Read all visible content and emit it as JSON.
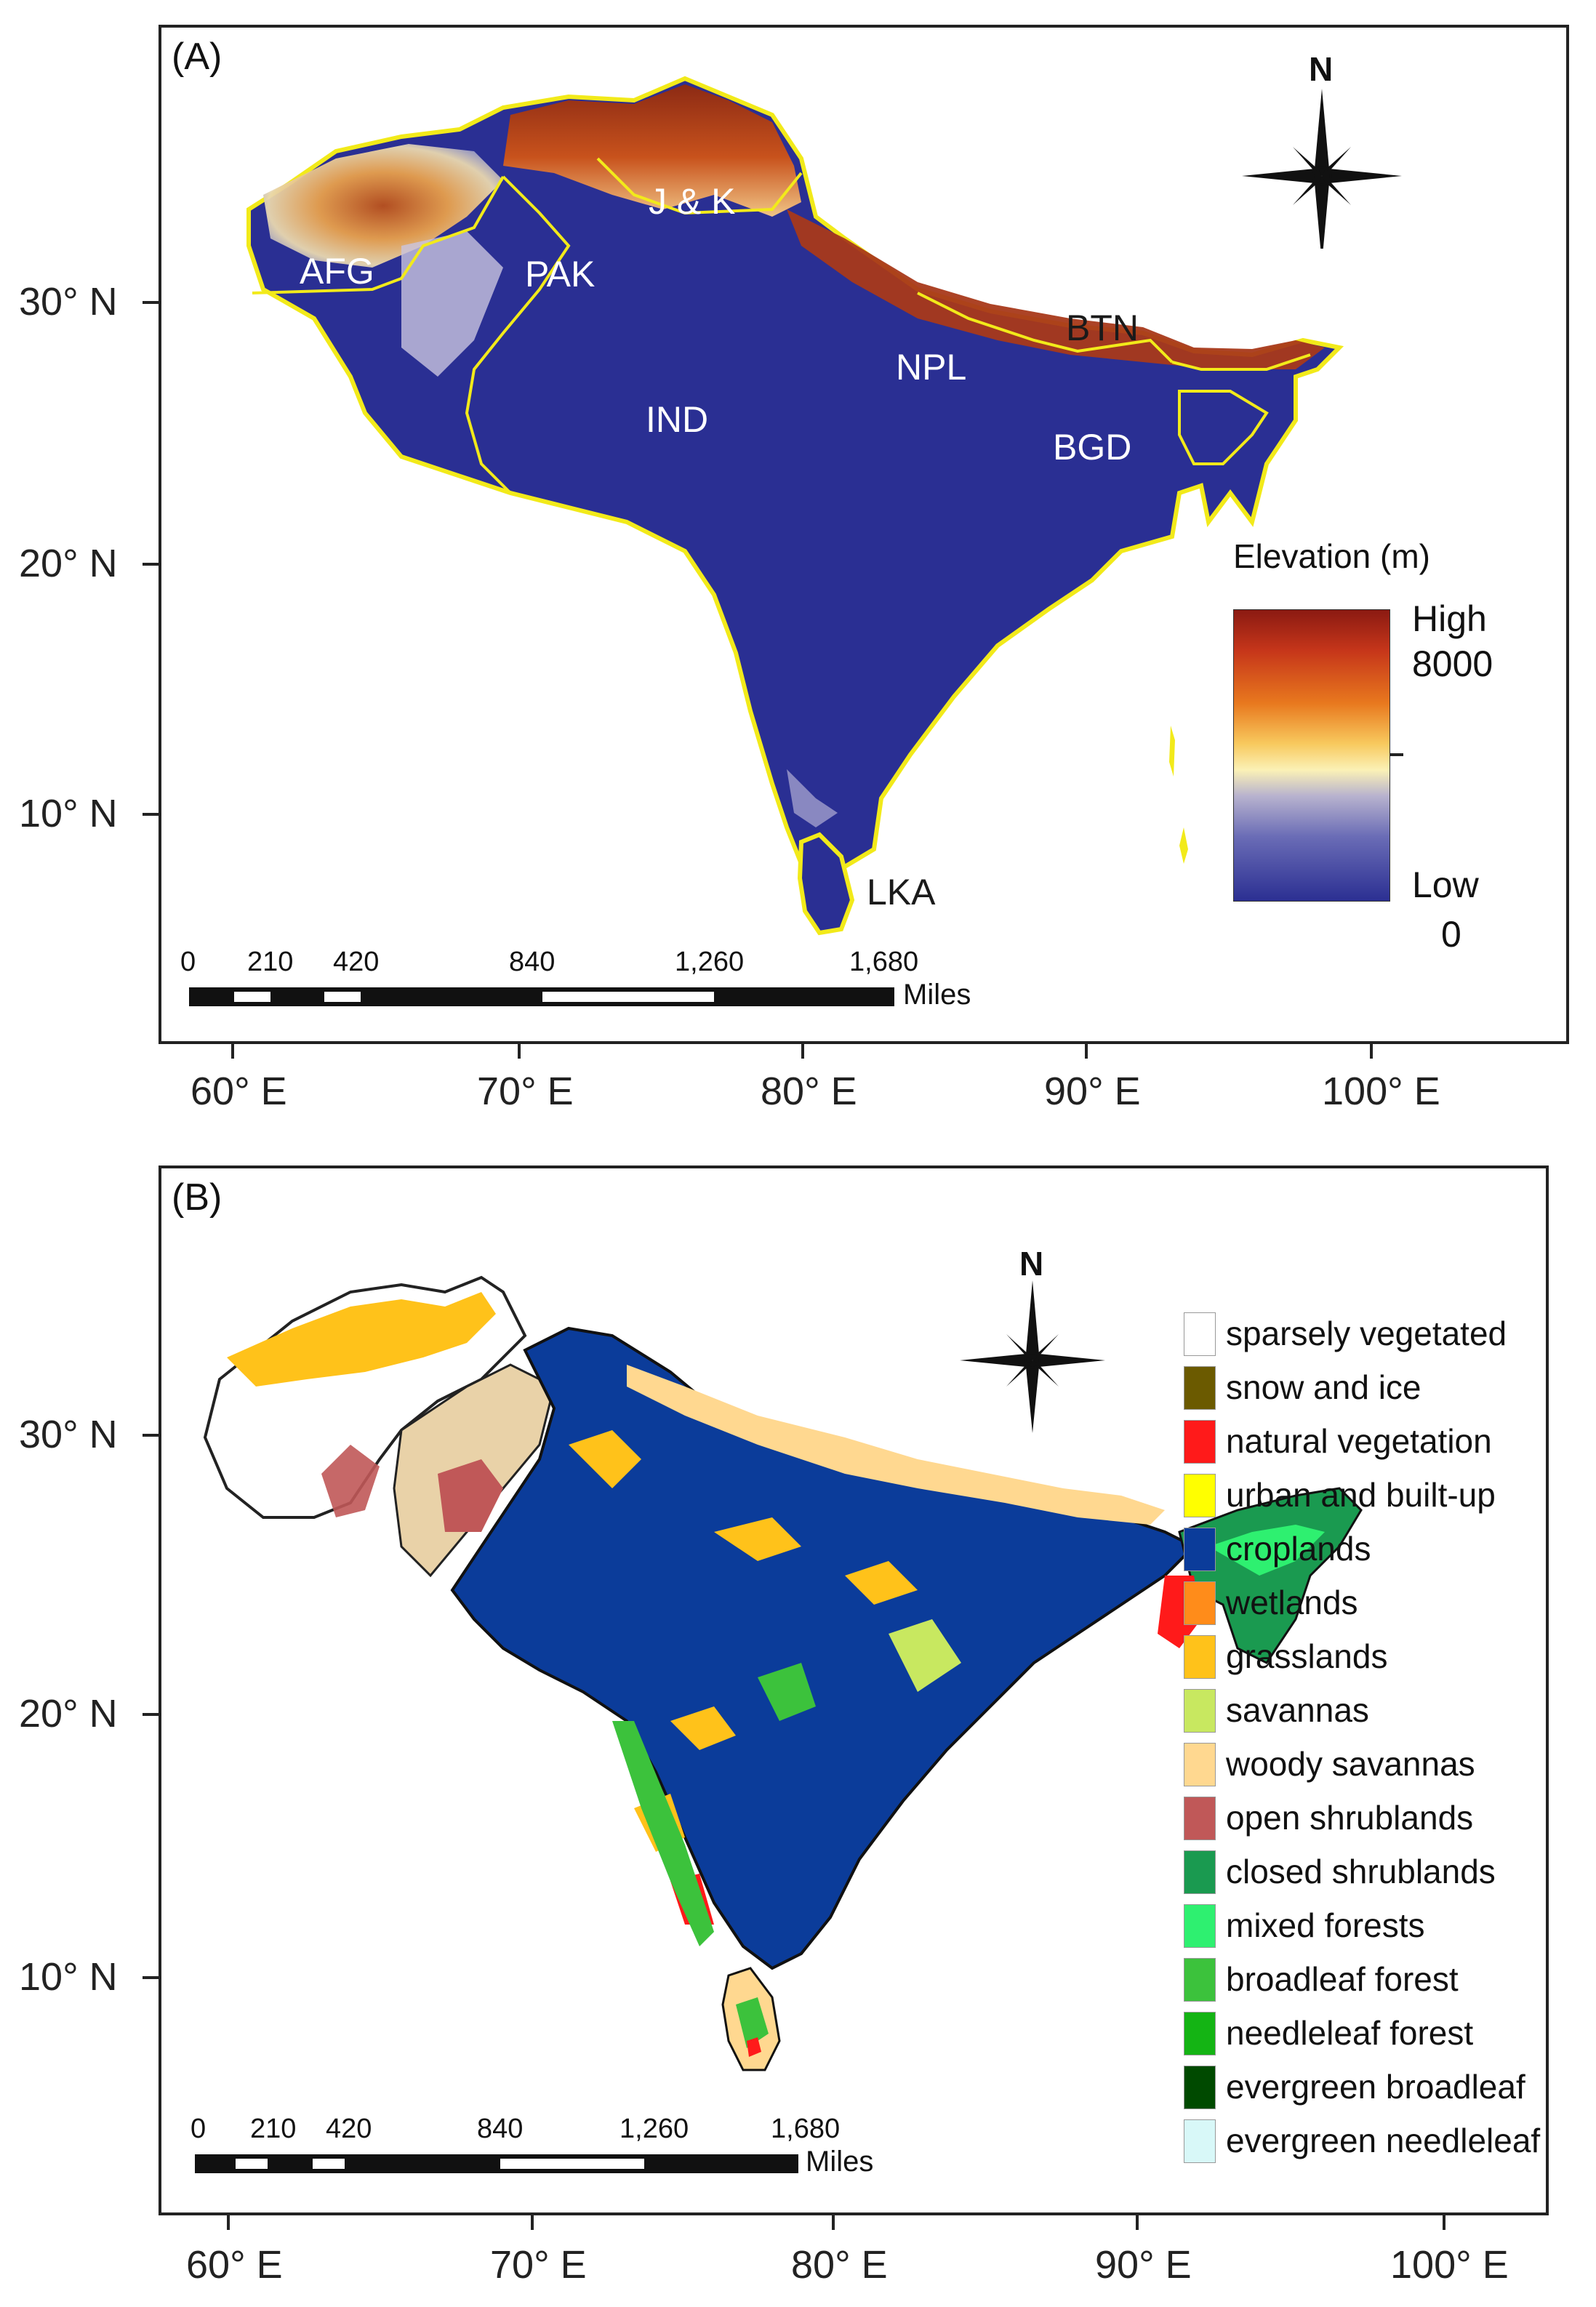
{
  "panel_a": {
    "letter": "(A)",
    "north": "N",
    "lat_labels": [
      "30° N",
      "20° N",
      "10° N"
    ],
    "lon_labels": [
      "60° E",
      "70° E",
      "80° E",
      "90° E",
      "100° E"
    ],
    "countries": {
      "afg": "AFG",
      "pak": "PAK",
      "jk": "J & K",
      "ind": "IND",
      "npl": "NPL",
      "btn": "BTN",
      "bgd": "BGD",
      "lka": "LKA"
    },
    "scale": {
      "ticks": [
        "0",
        "210",
        "420",
        "840",
        "1,260",
        "1,680"
      ],
      "unit": "Miles"
    },
    "legend": {
      "title": "Elevation (m)",
      "high": "High",
      "high_value": "8000",
      "low": "Low",
      "low_value": "0"
    }
  },
  "panel_b": {
    "letter": "(B)",
    "north": "N",
    "lat_labels": [
      "30° N",
      "20° N",
      "10° N"
    ],
    "lon_labels": [
      "60° E",
      "70° E",
      "80° E",
      "90° E",
      "100° E"
    ],
    "scale": {
      "ticks": [
        "0",
        "210",
        "420",
        "840",
        "1,260",
        "1,680"
      ],
      "unit": "Miles"
    },
    "legend": [
      {
        "label": "sparsely vegetated",
        "color": "#ffffff"
      },
      {
        "label": "snow and ice",
        "color": "#6b5a00"
      },
      {
        "label": "natural vegetation",
        "color": "#ff1a1a"
      },
      {
        "label": "urban and built-up",
        "color": "#ffff00"
      },
      {
        "label": "croplands",
        "color": "#0b3c9a"
      },
      {
        "label": "wetlands",
        "color": "#ff8c1a"
      },
      {
        "label": "grasslands",
        "color": "#ffc21a"
      },
      {
        "label": "savannas",
        "color": "#c8e860"
      },
      {
        "label": "woody savannas",
        "color": "#ffd890"
      },
      {
        "label": "open shrublands",
        "color": "#c05858"
      },
      {
        "label": "closed shrublands",
        "color": "#1a9a50"
      },
      {
        "label": "mixed forests",
        "color": "#2ef070"
      },
      {
        "label": "broadleaf forest",
        "color": "#3cc23c"
      },
      {
        "label": "needleleaf forest",
        "color": "#14b414"
      },
      {
        "label": "evergreen broadleaf",
        "color": "#004a00"
      },
      {
        "label": "evergreen needleleaf",
        "color": "#d8f8f8"
      }
    ]
  }
}
